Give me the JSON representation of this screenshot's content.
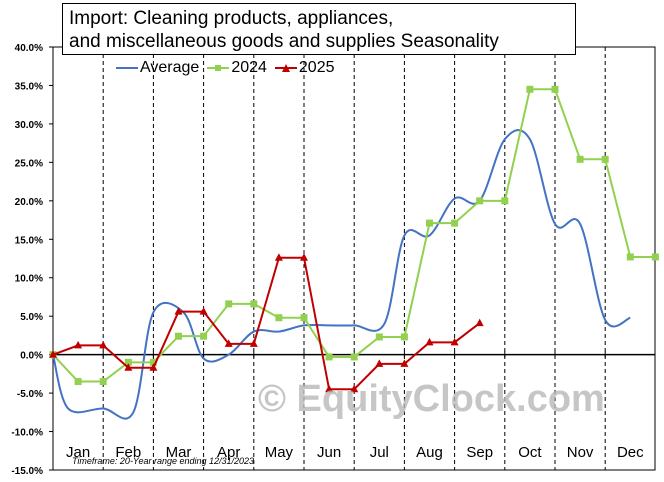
{
  "chart_data": {
    "type": "line",
    "title_lines": [
      "Import:  Cleaning products, appliances,",
      "and miscellaneous goods and supplies Seasonality"
    ],
    "categories": [
      "Jan",
      "Feb",
      "Mar",
      "Apr",
      "May",
      "Jun",
      "Jul",
      "Aug",
      "Sep",
      "Oct",
      "Nov",
      "Dec"
    ],
    "y_ticks": [
      "40.0%",
      "35.0%",
      "30.0%",
      "25.0%",
      "20.0%",
      "15.0%",
      "10.0%",
      "5.0%",
      "0.0%",
      "-5.0%",
      "-10.0%",
      "-15.0%"
    ],
    "ylim": [
      -15,
      40
    ],
    "series": [
      {
        "name": "Average",
        "color": "#4472c4",
        "marker": "none",
        "smooth": true,
        "points": [
          [
            1,
            0
          ],
          [
            1.3,
            -7
          ],
          [
            2,
            -7
          ],
          [
            2.6,
            -7.5
          ],
          [
            3.0,
            5.5
          ],
          [
            3.6,
            5.5
          ],
          [
            4.0,
            -0.5
          ],
          [
            4.5,
            0
          ],
          [
            5.0,
            3.0
          ],
          [
            5.5,
            3.0
          ],
          [
            6.0,
            3.8
          ],
          [
            6.5,
            3.8
          ],
          [
            7.0,
            3.8
          ],
          [
            7.6,
            4
          ],
          [
            8.0,
            15.5
          ],
          [
            8.5,
            15.5
          ],
          [
            9.0,
            20.3
          ],
          [
            9.5,
            20.0
          ],
          [
            10.0,
            28.0
          ],
          [
            10.5,
            28.0
          ],
          [
            11.0,
            17.0
          ],
          [
            11.5,
            17.0
          ],
          [
            12.0,
            4.5
          ],
          [
            12.5,
            4.8
          ]
        ]
      },
      {
        "name": "2024",
        "color": "#92d050",
        "marker": "square",
        "smooth": false,
        "points": [
          [
            1,
            0
          ],
          [
            1.5,
            -3.5
          ],
          [
            2.0,
            -3.5
          ],
          [
            2.5,
            -1.0
          ],
          [
            3.0,
            -1.0
          ],
          [
            3.5,
            2.4
          ],
          [
            4.0,
            2.4
          ],
          [
            4.5,
            6.6
          ],
          [
            5.0,
            6.6
          ],
          [
            5.5,
            4.8
          ],
          [
            6.0,
            4.8
          ],
          [
            6.5,
            -0.3
          ],
          [
            7.0,
            -0.3
          ],
          [
            7.5,
            2.3
          ],
          [
            8.0,
            2.3
          ],
          [
            8.5,
            17.1
          ],
          [
            9.0,
            17.1
          ],
          [
            9.5,
            20.0
          ],
          [
            10.0,
            20.0
          ],
          [
            10.5,
            34.5
          ],
          [
            11.0,
            34.5
          ],
          [
            11.5,
            25.4
          ],
          [
            12.0,
            25.4
          ],
          [
            12.5,
            12.7
          ],
          [
            13.0,
            12.7
          ]
        ]
      },
      {
        "name": "2025",
        "color": "#c00000",
        "marker": "triangle",
        "smooth": false,
        "points": [
          [
            1,
            0
          ],
          [
            1.5,
            1.2
          ],
          [
            2.0,
            1.2
          ],
          [
            2.5,
            -1.7
          ],
          [
            3.0,
            -1.7
          ],
          [
            3.5,
            5.6
          ],
          [
            4.0,
            5.6
          ],
          [
            4.5,
            1.4
          ],
          [
            5.0,
            1.4
          ],
          [
            5.5,
            12.6
          ],
          [
            6.0,
            12.6
          ],
          [
            6.5,
            -4.5
          ],
          [
            7.0,
            -4.5
          ],
          [
            7.5,
            -1.2
          ],
          [
            8.0,
            -1.2
          ],
          [
            8.5,
            1.6
          ],
          [
            9.0,
            1.6
          ],
          [
            9.5,
            4.1
          ]
        ]
      }
    ],
    "grid": "vertical dashed lines at month boundaries",
    "legend_position": "top-left",
    "footnote": "Timeframe: 20-Year range ending 12/31/2023",
    "watermark": "© EquityClock.com"
  }
}
